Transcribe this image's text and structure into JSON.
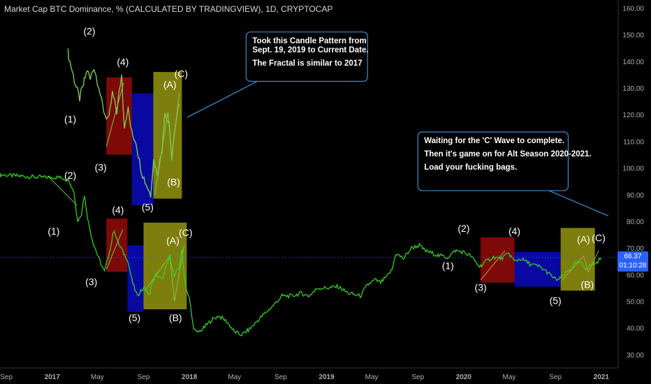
{
  "header": {
    "title": "Market Cap BTC Dominance, % (CALCULATED BY TRADINGVIEW), 1D, CRYPTOCAP"
  },
  "price_tag": {
    "value": "66.37",
    "timer": "01:10:28",
    "color": "#2962ff"
  },
  "colors": {
    "background": "#000000",
    "price_line": "#33dd22",
    "fractal_line": "#7ec850",
    "box_red": "#8b0a0a",
    "box_blue": "#0a0ab4",
    "box_yellow": "#8c8c10",
    "callout_border": "#3a8fd6",
    "axis_text": "#b0b0b0"
  },
  "chart_data": {
    "type": "line",
    "title": "Market Cap BTC Dominance, % (CALCULATED BY TRADINGVIEW), 1D, CRYPTOCAP",
    "xlabel": "",
    "ylabel": "",
    "y_ticks": [
      "160.00",
      "150.00",
      "140.00",
      "130.00",
      "120.00",
      "110.00",
      "100.00",
      "90.00",
      "80.00",
      "70.00",
      "60.00",
      "50.00",
      "40.00",
      "30.00"
    ],
    "ylim": [
      25,
      163
    ],
    "xlim": [
      "2016-08-15",
      "2021-02-15"
    ],
    "x_ticks": [
      {
        "date": "2016-09-01",
        "label": "Sep"
      },
      {
        "date": "2017-01-01",
        "label": "2017"
      },
      {
        "date": "2017-05-01",
        "label": "May"
      },
      {
        "date": "2017-09-01",
        "label": "Sep"
      },
      {
        "date": "2018-01-01",
        "label": "2018"
      },
      {
        "date": "2018-05-01",
        "label": "May"
      },
      {
        "date": "2018-09-01",
        "label": "Sep"
      },
      {
        "date": "2019-01-01",
        "label": "2019"
      },
      {
        "date": "2019-05-01",
        "label": "May"
      },
      {
        "date": "2019-09-01",
        "label": "Sep"
      },
      {
        "date": "2020-01-01",
        "label": "2020"
      },
      {
        "date": "2020-05-01",
        "label": "May"
      },
      {
        "date": "2020-09-01",
        "label": "Sep"
      },
      {
        "date": "2021-01-01",
        "label": "2021"
      }
    ],
    "grid": false,
    "series": [
      {
        "name": "",
        "points": [
          [
            "2016-08-15",
            97.5
          ],
          [
            "2016-10-01",
            97.0
          ],
          [
            "2016-12-01",
            96.5
          ],
          [
            "2017-01-20",
            96.5
          ],
          [
            "2017-02-15",
            95.5
          ],
          [
            "2017-02-28",
            91.0
          ],
          [
            "2017-03-10",
            80.0
          ],
          [
            "2017-03-20",
            83.0
          ],
          [
            "2017-03-28",
            90.0
          ],
          [
            "2017-04-08",
            79.0
          ],
          [
            "2017-04-20",
            72.0
          ],
          [
            "2017-05-05",
            66.0
          ],
          [
            "2017-05-20",
            61.0
          ],
          [
            "2017-06-05",
            70.0
          ],
          [
            "2017-06-15",
            77.0
          ],
          [
            "2017-06-25",
            72.0
          ],
          [
            "2017-07-10",
            68.0
          ],
          [
            "2017-07-20",
            66.0
          ],
          [
            "2017-08-01",
            58.0
          ],
          [
            "2017-08-15",
            52.0
          ],
          [
            "2017-08-25",
            54.0
          ],
          [
            "2017-09-05",
            55.0
          ],
          [
            "2017-09-15",
            52.0
          ],
          [
            "2017-09-25",
            57.0
          ],
          [
            "2017-10-05",
            60.0
          ],
          [
            "2017-10-20",
            58.0
          ],
          [
            "2017-11-01",
            63.0
          ],
          [
            "2017-11-10",
            67.0
          ],
          [
            "2017-11-22",
            59.0
          ],
          [
            "2017-12-05",
            63.0
          ],
          [
            "2017-12-12",
            69.0
          ],
          [
            "2017-12-22",
            56.0
          ],
          [
            "2018-01-01",
            51.0
          ],
          [
            "2018-01-10",
            41.5
          ],
          [
            "2018-01-20",
            38.0
          ],
          [
            "2018-02-05",
            39.5
          ],
          [
            "2018-03-01",
            43.0
          ],
          [
            "2018-03-20",
            44.5
          ],
          [
            "2018-04-10",
            42.5
          ],
          [
            "2018-05-01",
            38.5
          ],
          [
            "2018-05-20",
            37.5
          ],
          [
            "2018-06-10",
            39.5
          ],
          [
            "2018-07-10",
            44.0
          ],
          [
            "2018-08-10",
            48.0
          ],
          [
            "2018-09-05",
            52.0
          ],
          [
            "2018-10-01",
            52.0
          ],
          [
            "2018-10-25",
            53.0
          ],
          [
            "2018-11-15",
            52.0
          ],
          [
            "2018-12-10",
            55.0
          ],
          [
            "2019-01-05",
            55.0
          ],
          [
            "2019-02-01",
            55.5
          ],
          [
            "2019-03-01",
            53.0
          ],
          [
            "2019-04-01",
            52.0
          ],
          [
            "2019-04-20",
            56.0
          ],
          [
            "2019-05-10",
            58.0
          ],
          [
            "2019-05-25",
            57.0
          ],
          [
            "2019-06-10",
            59.0
          ],
          [
            "2019-06-25",
            62.0
          ],
          [
            "2019-07-05",
            68.0
          ],
          [
            "2019-07-25",
            66.0
          ],
          [
            "2019-08-15",
            70.0
          ],
          [
            "2019-09-05",
            71.0
          ],
          [
            "2019-09-20",
            69.0
          ],
          [
            "2019-10-10",
            68.0
          ],
          [
            "2019-11-01",
            67.0
          ],
          [
            "2019-11-20",
            66.5
          ],
          [
            "2019-12-10",
            69.0
          ],
          [
            "2019-12-30",
            68.5
          ],
          [
            "2020-01-20",
            67.0
          ],
          [
            "2020-02-12",
            63.0
          ],
          [
            "2020-03-01",
            65.0
          ],
          [
            "2020-03-20",
            66.5
          ],
          [
            "2020-04-10",
            66.0
          ],
          [
            "2020-05-01",
            68.0
          ],
          [
            "2020-05-15",
            65.0
          ],
          [
            "2020-06-01",
            66.0
          ],
          [
            "2020-06-25",
            64.0
          ],
          [
            "2020-07-20",
            63.0
          ],
          [
            "2020-08-10",
            61.0
          ],
          [
            "2020-08-30",
            58.5
          ],
          [
            "2020-09-10",
            58.0
          ],
          [
            "2020-09-25",
            60.0
          ],
          [
            "2020-10-10",
            62.0
          ],
          [
            "2020-10-25",
            64.0
          ],
          [
            "2020-11-05",
            64.5
          ],
          [
            "2020-11-20",
            62.5
          ],
          [
            "2020-12-05",
            63.5
          ],
          [
            "2020-12-20",
            64.5
          ],
          [
            "2021-01-01",
            66.4
          ]
        ]
      }
    ],
    "fractal_series": [
      [
        "2017-02-12",
        143.5
      ],
      [
        "2017-03-01",
        133.0
      ],
      [
        "2017-03-15",
        126.0
      ],
      [
        "2017-03-25",
        131.0
      ],
      [
        "2017-04-05",
        137.0
      ],
      [
        "2017-04-12",
        133.0
      ],
      [
        "2017-04-22",
        138.0
      ],
      [
        "2017-05-05",
        131.0
      ],
      [
        "2017-05-12",
        125.0
      ],
      [
        "2017-05-22",
        120.0
      ],
      [
        "2017-06-01",
        118.0
      ],
      [
        "2017-06-10",
        128.0
      ],
      [
        "2017-06-22",
        121.0
      ],
      [
        "2017-07-05",
        135.0
      ],
      [
        "2017-07-12",
        116.0
      ],
      [
        "2017-07-22",
        122.0
      ],
      [
        "2017-08-01",
        113.0
      ],
      [
        "2017-08-12",
        110.0
      ],
      [
        "2017-08-25",
        100.0
      ],
      [
        "2017-09-05",
        95.0
      ],
      [
        "2017-09-20",
        90.0
      ],
      [
        "2017-09-28",
        103.0
      ],
      [
        "2017-10-08",
        98.0
      ],
      [
        "2017-10-20",
        107.0
      ],
      [
        "2017-10-28",
        121.0
      ],
      [
        "2017-11-08",
        116.0
      ],
      [
        "2017-11-15",
        104.0
      ],
      [
        "2017-11-25",
        115.0
      ],
      [
        "2017-12-05",
        124.0
      ]
    ],
    "boxes": [
      {
        "color": "red",
        "x0": "2017-05-25",
        "x1": "2017-08-01",
        "y0": 105,
        "y1": 134
      },
      {
        "color": "blue",
        "x0": "2017-08-01",
        "x1": "2017-09-27",
        "y0": 86,
        "y1": 128
      },
      {
        "color": "yellow",
        "x0": "2017-09-27",
        "x1": "2017-12-12",
        "y0": 88.5,
        "y1": 136
      },
      {
        "color": "red",
        "x0": "2017-05-25",
        "x1": "2017-07-20",
        "y0": 61,
        "y1": 81
      },
      {
        "color": "blue",
        "x0": "2017-07-20",
        "x1": "2017-09-01",
        "y0": 46,
        "y1": 71
      },
      {
        "color": "yellow",
        "x0": "2017-09-01",
        "x1": "2017-12-25",
        "y0": 47,
        "y1": 79.5
      },
      {
        "color": "red",
        "x0": "2020-02-15",
        "x1": "2020-05-15",
        "y0": 57,
        "y1": 74
      },
      {
        "color": "blue",
        "x0": "2020-05-15",
        "x1": "2020-09-15",
        "y0": 55.5,
        "y1": 68.5
      },
      {
        "color": "yellow",
        "x0": "2020-09-15",
        "x1": "2020-12-15",
        "y0": 54,
        "y1": 77.5
      }
    ],
    "segments": [
      {
        "color": "#7ec850",
        "pts": [
          [
            "2017-05-25",
            108
          ],
          [
            "2017-07-10",
            132
          ]
        ]
      },
      {
        "color": "#7ec850",
        "pts": [
          [
            "2017-10-01",
            90
          ],
          [
            "2017-11-05",
            121
          ],
          [
            "2017-11-15",
            104
          ],
          [
            "2017-12-05",
            128
          ]
        ]
      },
      {
        "color": "#7ec850",
        "pts": [
          [
            "2016-12-20",
            97
          ],
          [
            "2017-03-08",
            86
          ]
        ]
      },
      {
        "color": "#7ec850",
        "pts": [
          [
            "2017-05-25",
            62
          ],
          [
            "2017-07-08",
            77
          ]
        ]
      },
      {
        "color": "#7ec850",
        "pts": [
          [
            "2017-09-05",
            54
          ],
          [
            "2017-11-10",
            67
          ],
          [
            "2017-11-22",
            50
          ],
          [
            "2017-12-18",
            71
          ]
        ]
      },
      {
        "color": "#c09a50",
        "pts": [
          [
            "2020-02-15",
            58
          ],
          [
            "2020-04-20",
            69
          ]
        ]
      },
      {
        "color": "#c09a50",
        "pts": [
          [
            "2020-09-20",
            58
          ],
          [
            "2020-11-15",
            67
          ],
          [
            "2020-11-28",
            61
          ],
          [
            "2020-12-25",
            69
          ]
        ]
      }
    ],
    "annotations": [
      {
        "text": "(2)",
        "x": "2017-04-10",
        "y": 150
      },
      {
        "text": "(4)",
        "x": "2017-07-08",
        "y": 138.5
      },
      {
        "text": "(1)",
        "x": "2017-02-18",
        "y": 117
      },
      {
        "text": "(3)",
        "x": "2017-05-10",
        "y": 99
      },
      {
        "text": "(A)",
        "x": "2017-11-10",
        "y": 130
      },
      {
        "text": "(C)",
        "x": "2017-12-10",
        "y": 134
      },
      {
        "text": "(B)",
        "x": "2017-11-20",
        "y": 93.5
      },
      {
        "text": "(2)",
        "x": "2017-02-18",
        "y": 96
      },
      {
        "text": "(4)",
        "x": "2017-06-25",
        "y": 83
      },
      {
        "text": "(1)",
        "x": "2017-01-05",
        "y": 75
      },
      {
        "text": "(3)",
        "x": "2017-04-15",
        "y": 56
      },
      {
        "text": "(5)",
        "x": "2017-09-12",
        "y": 84
      },
      {
        "text": "(A)",
        "x": "2017-11-18",
        "y": 71.5
      },
      {
        "text": "(C)",
        "x": "2017-12-22",
        "y": 74.5
      },
      {
        "text": "(5)",
        "x": "2017-08-08",
        "y": 42.5
      },
      {
        "text": "(B)",
        "x": "2017-11-25",
        "y": 42.5
      },
      {
        "text": "(2)",
        "x": "2020-01-01",
        "y": 76
      },
      {
        "text": "(4)",
        "x": "2020-05-15",
        "y": 75
      },
      {
        "text": "(1)",
        "x": "2019-11-20",
        "y": 62
      },
      {
        "text": "(3)",
        "x": "2020-02-15",
        "y": 54
      },
      {
        "text": "(5)",
        "x": "2020-09-01",
        "y": 49
      },
      {
        "text": "(A)",
        "x": "2020-11-15",
        "y": 72
      },
      {
        "text": "(C)",
        "x": "2020-12-25",
        "y": 72.5
      },
      {
        "text": "(B)",
        "x": "2020-11-25",
        "y": 55
      }
    ],
    "callouts": [
      {
        "lines": [
          "Took this Candle Pattern from",
          "Sept. 19, 2019 to Current Date.",
          "",
          "The Fractal is similar to 2017"
        ],
        "x0": "2018-06-01",
        "x1": "2019-04-20",
        "y0": 132.5,
        "y1": 151,
        "pointer_from": [
          "2018-07-01",
          132.5
        ],
        "pointer_to": [
          "2017-12-26",
          119
        ]
      },
      {
        "lines": [
          "Waiting for the 'C' Wave to complete.",
          "",
          "Then it's game on for Alt Season 2020-2021.",
          "",
          "Load your fucking bags."
        ],
        "x0": "2019-09-01",
        "x1": "2020-10-05",
        "y0": 91.5,
        "y1": 113.5,
        "pointer_from": [
          "2020-08-15",
          91.5
        ],
        "pointer_to": [
          "2021-01-20",
          82
        ]
      }
    ]
  }
}
